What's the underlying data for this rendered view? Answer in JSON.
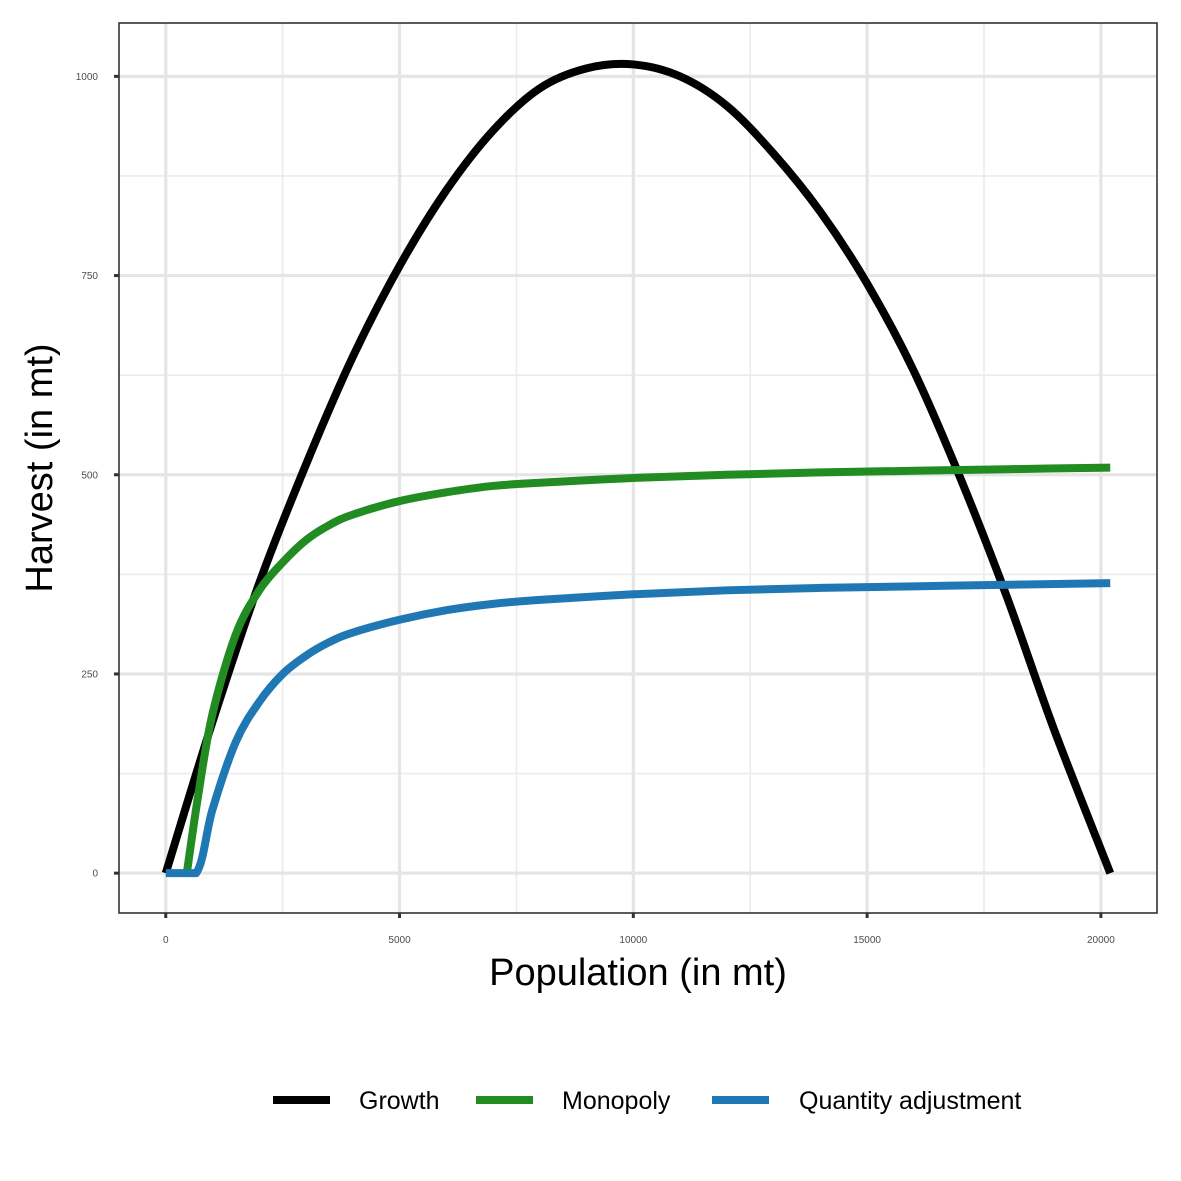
{
  "chart_data": {
    "type": "line",
    "xlabel": "Population (in mt)",
    "ylabel": "Harvest (in mt)",
    "xlim": [
      -1000,
      21200
    ],
    "ylim": [
      -50,
      1067
    ],
    "x_ticks": [
      0,
      5000,
      10000,
      15000,
      20000
    ],
    "x_tick_labels": [
      "0",
      "5000",
      "10000",
      "15000",
      "20000"
    ],
    "x_minor_ticks": [
      2500,
      7500,
      12500,
      17500
    ],
    "y_ticks": [
      0,
      250,
      500,
      750,
      1000
    ],
    "y_tick_labels": [
      "0",
      "250",
      "500",
      "750",
      "1000"
    ],
    "y_minor_ticks": [
      125,
      375,
      625,
      875
    ],
    "grid": true,
    "legend_position": "bottom",
    "series": [
      {
        "name": "Growth",
        "color": "#000000",
        "x": [
          0,
          1000,
          2000,
          3000,
          4000,
          5000,
          6000,
          7000,
          8000,
          9000,
          10000,
          11000,
          12000,
          13000,
          14000,
          15000,
          16000,
          17000,
          18000,
          19000,
          20200
        ],
        "y": [
          0,
          190,
          364,
          513,
          648,
          762,
          857,
          932,
          985,
          1010,
          1015,
          1000,
          963,
          903,
          830,
          740,
          630,
          495,
          345,
          180,
          0
        ]
      },
      {
        "name": "Monopoly",
        "color": "#228b22",
        "x": [
          450,
          700,
          1000,
          1500,
          2000,
          2500,
          3000,
          3500,
          4000,
          5000,
          6000,
          7000,
          8000,
          10000,
          12000,
          14000,
          16000,
          18000,
          20200
        ],
        "y": [
          0,
          100,
          200,
          300,
          355,
          390,
          418,
          437,
          450,
          467,
          478,
          486,
          490,
          496,
          500,
          503,
          505,
          507,
          509
        ]
      },
      {
        "name": "Quantity adjustment",
        "color": "#1f78b4",
        "x": [
          0,
          650,
          1000,
          1500,
          2000,
          2500,
          3000,
          3500,
          4000,
          5000,
          6000,
          7000,
          8000,
          10000,
          12000,
          14000,
          16000,
          18000,
          20200
        ],
        "y": [
          0,
          0,
          80,
          165,
          215,
          250,
          273,
          290,
          302,
          318,
          330,
          338,
          343,
          350,
          355,
          358,
          360,
          362,
          364
        ]
      }
    ]
  }
}
